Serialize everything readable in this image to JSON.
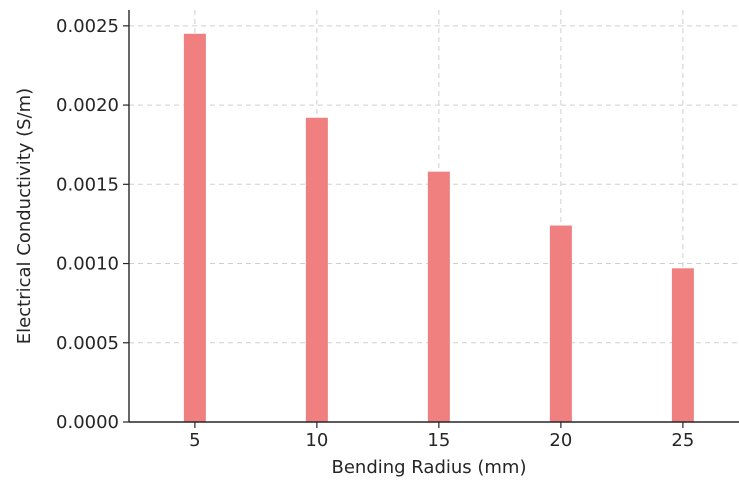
{
  "chart_data": {
    "type": "bar",
    "categories": [
      "5",
      "10",
      "15",
      "20",
      "25"
    ],
    "x": [
      5,
      10,
      15,
      20,
      25
    ],
    "values": [
      0.00245,
      0.00192,
      0.00158,
      0.00124,
      0.00097
    ],
    "title": "",
    "xlabel": "Bending Radius (mm)",
    "ylabel": "Electrical Conductivity (S/m)",
    "ylim": [
      0,
      0.0026
    ],
    "yticks": [
      "0.0000",
      "0.0005",
      "0.0010",
      "0.0015",
      "0.0020",
      "0.0025"
    ],
    "ytick_values": [
      0,
      0.0005,
      0.001,
      0.0015,
      0.002,
      0.0025
    ],
    "grid": true,
    "bar_color": "#f08080"
  }
}
